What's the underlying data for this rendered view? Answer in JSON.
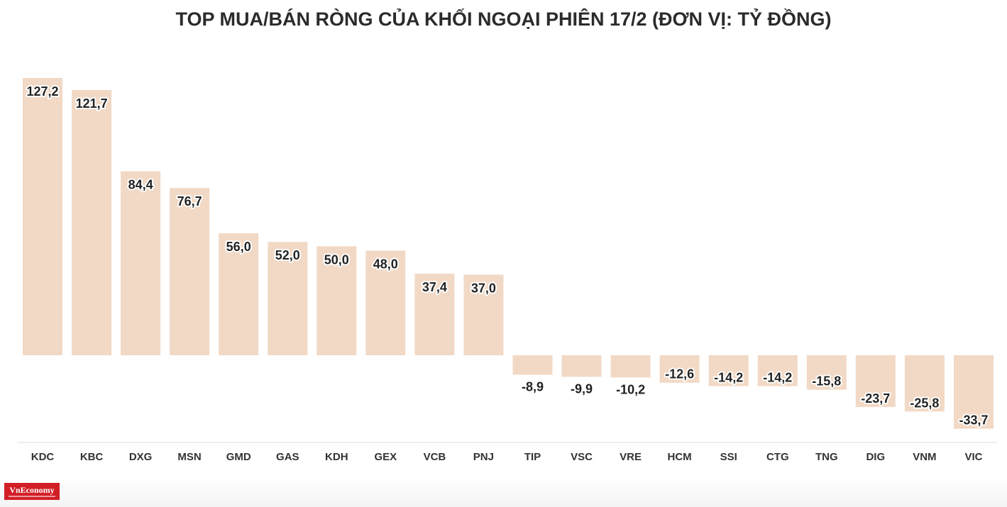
{
  "chart_data": {
    "type": "bar",
    "title": "TOP MUA/BÁN RÒNG CỦA KHỐI NGOẠI PHIÊN 17/2 (ĐƠN VỊ: TỶ ĐỒNG)",
    "categories": [
      "KDC",
      "KBC",
      "DXG",
      "MSN",
      "GMD",
      "GAS",
      "KDH",
      "GEX",
      "VCB",
      "PNJ",
      "TIP",
      "VSC",
      "VRE",
      "HCM",
      "SSI",
      "CTG",
      "TNG",
      "DIG",
      "VNM",
      "VIC"
    ],
    "values": [
      127.2,
      121.7,
      84.4,
      76.7,
      56.0,
      52.0,
      50.0,
      48.0,
      37.4,
      37.0,
      -8.9,
      -9.9,
      -10.2,
      -12.6,
      -14.2,
      -14.2,
      -15.8,
      -23.7,
      -25.8,
      -33.7
    ],
    "value_labels": [
      "127,2",
      "121,7",
      "84,4",
      "76,7",
      "56,0",
      "52,0",
      "50,0",
      "48,0",
      "37,4",
      "37,0",
      "-8,9",
      "-9,9",
      "-10,2",
      "-12,6",
      "-14,2",
      "-14,2",
      "-15,8",
      "-23,7",
      "-25,8",
      "-33,7"
    ],
    "bar_color": "#f2d9c5",
    "axis_color": "#dddddd",
    "xlabel": "",
    "ylabel": "",
    "grid": false,
    "legend": "none"
  },
  "brand": {
    "logo_text": "VnEconomy",
    "logo_color": "#d21f26"
  }
}
